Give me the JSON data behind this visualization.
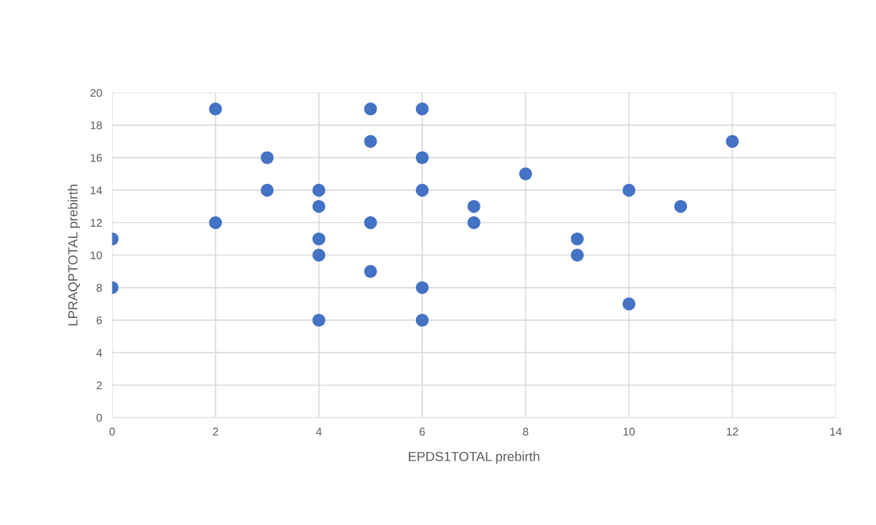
{
  "chart_data": {
    "type": "scatter",
    "xlabel": "EPDS1TOTAL prebirth",
    "ylabel": "LPRAQPTOTAL prebirth",
    "x": [
      0,
      0,
      2,
      2,
      3,
      3,
      4,
      4,
      4,
      4,
      4,
      5,
      5,
      5,
      5,
      6,
      6,
      6,
      6,
      6,
      7,
      7,
      8,
      9,
      9,
      10,
      10,
      11,
      12
    ],
    "series": [
      {
        "color": "#4472c4",
        "values": [
          11,
          8,
          19,
          12,
          16,
          14,
          14,
          13,
          11,
          10,
          6,
          19,
          17,
          12,
          9,
          19,
          16,
          14,
          8,
          6,
          13,
          12,
          15,
          11,
          10,
          14,
          7,
          13,
          17
        ]
      }
    ],
    "xlim": [
      0,
      14
    ],
    "xticks": [
      0,
      2,
      4,
      6,
      8,
      10,
      12,
      14
    ],
    "ylim": [
      0,
      20
    ],
    "yticks": [
      0,
      2,
      4,
      6,
      8,
      10,
      12,
      14,
      16,
      18,
      20
    ],
    "grid": true,
    "marker": "circle",
    "legend": false
  }
}
